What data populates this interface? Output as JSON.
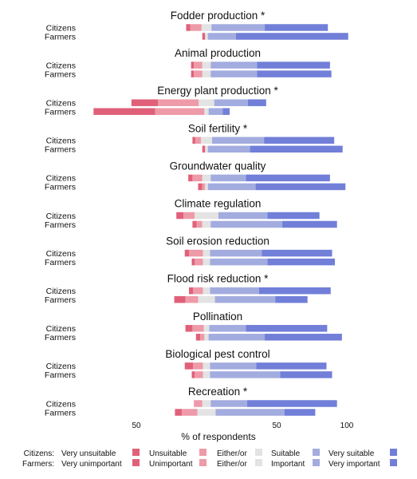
{
  "chart_data": {
    "type": "bar",
    "orientation": "horizontal-diverging",
    "xlabel": "% of respondents",
    "xticks": [
      {
        "value": -50,
        "label": "50"
      },
      {
        "value": 50,
        "label": "50"
      },
      {
        "value": 100,
        "label": "100"
      }
    ],
    "xlim": [
      -60,
      104
    ],
    "groups": [
      "Citizens",
      "Farmers"
    ],
    "categories": [
      "s1",
      "s2",
      "neutral",
      "s4",
      "s5"
    ],
    "colors": [
      "#e0607a",
      "#ee9aa8",
      "#e3e3e3",
      "#a3acdf",
      "#717fd9"
    ],
    "panels": [
      {
        "title": "Fodder production *",
        "rows": [
          {
            "group": "Citizens",
            "values": [
              3,
              8,
              7,
              38,
              45
            ]
          },
          {
            "group": "Farmers",
            "values": [
              2,
              0,
              2,
              20,
              80
            ]
          }
        ]
      },
      {
        "title": "Animal production",
        "rows": [
          {
            "group": "Citizens",
            "values": [
              2,
              6,
              6,
              33,
              52
            ]
          },
          {
            "group": "Farmers",
            "values": [
              2,
              6,
              6,
              33,
              53
            ]
          }
        ]
      },
      {
        "title": "Energy plant production *",
        "rows": [
          {
            "group": "Citizens",
            "values": [
              19,
              29,
              11,
              24,
              13
            ]
          },
          {
            "group": "Farmers",
            "values": [
              44,
              35,
              3,
              10,
              5
            ]
          }
        ]
      },
      {
        "title": "Soil fertility *",
        "rows": [
          {
            "group": "Citizens",
            "values": [
              2,
              4,
              8,
              37,
              50
            ]
          },
          {
            "group": "Farmers",
            "values": [
              2,
              0,
              2,
              30,
              66
            ]
          }
        ]
      },
      {
        "title": "Groundwater quality",
        "rows": [
          {
            "group": "Citizens",
            "values": [
              3,
              7,
              6,
              25,
              60
            ]
          },
          {
            "group": "Farmers",
            "values": [
              3,
              2,
              2,
              34,
              64
            ]
          }
        ]
      },
      {
        "title": "Climate regulation",
        "rows": [
          {
            "group": "Citizens",
            "values": [
              5,
              8,
              17,
              35,
              37
            ]
          },
          {
            "group": "Farmers",
            "values": [
              3,
              4,
              6,
              51,
              39
            ]
          }
        ]
      },
      {
        "title": "Soil erosion reduction",
        "rows": [
          {
            "group": "Citizens",
            "values": [
              3,
              10,
              5,
              37,
              50
            ]
          },
          {
            "group": "Farmers",
            "values": [
              2,
              6,
              5,
              41,
              48
            ]
          }
        ]
      },
      {
        "title": "Flood risk reduction *",
        "rows": [
          {
            "group": "Citizens",
            "values": [
              3,
              7,
              5,
              35,
              51
            ]
          },
          {
            "group": "Farmers",
            "values": [
              8,
              9,
              12,
              43,
              23
            ]
          }
        ]
      },
      {
        "title": "Pollination",
        "rows": [
          {
            "group": "Citizens",
            "values": [
              5,
              8,
              4,
              26,
              58
            ]
          },
          {
            "group": "Farmers",
            "values": [
              3,
              3,
              3,
              40,
              55
            ]
          }
        ]
      },
      {
        "title": "Biological pest control",
        "rows": [
          {
            "group": "Citizens",
            "values": [
              6,
              7,
              5,
              33,
              50
            ]
          },
          {
            "group": "Farmers",
            "values": [
              2,
              6,
              5,
              50,
              37
            ]
          }
        ]
      },
      {
        "title": "Recreation *",
        "rows": [
          {
            "group": "Citizens",
            "values": [
              0,
              6,
              6,
              26,
              64
            ]
          },
          {
            "group": "Farmers",
            "values": [
              5,
              11,
              13,
              49,
              22
            ]
          }
        ]
      }
    ]
  },
  "legend": {
    "rows": [
      {
        "prefix": "Citizens:",
        "items": [
          "Very unsuitable",
          "Unsuitable",
          "Either/or",
          "Suitable",
          "Very suitable"
        ]
      },
      {
        "prefix": "Farmers:",
        "items": [
          "Very unimportant",
          "Unimportant",
          "Either/or",
          "Important",
          "Very important"
        ]
      }
    ]
  }
}
